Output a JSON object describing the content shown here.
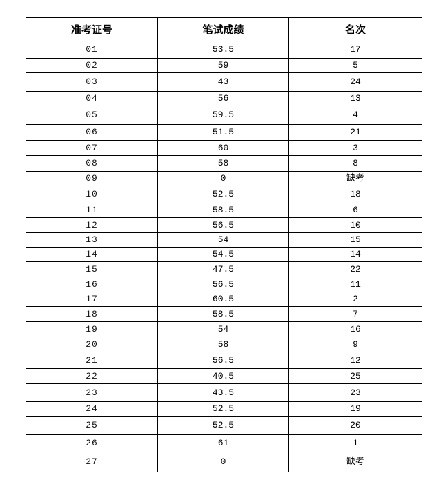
{
  "table": {
    "headers": [
      "准考证号",
      "笔试成绩",
      "名次"
    ],
    "rows": [
      [
        "01",
        "53.5",
        "17"
      ],
      [
        "02",
        "59",
        "5"
      ],
      [
        "03",
        "43",
        "24"
      ],
      [
        "04",
        "56",
        "13"
      ],
      [
        "05",
        "59.5",
        "4"
      ],
      [
        "06",
        "51.5",
        "21"
      ],
      [
        "07",
        "60",
        "3"
      ],
      [
        "08",
        "58",
        "8"
      ],
      [
        "09",
        "0",
        "缺考"
      ],
      [
        "10",
        "52.5",
        "18"
      ],
      [
        "11",
        "58.5",
        "6"
      ],
      [
        "12",
        "56.5",
        "10"
      ],
      [
        "13",
        "54",
        "15"
      ],
      [
        "14",
        "54.5",
        "14"
      ],
      [
        "15",
        "47.5",
        "22"
      ],
      [
        "16",
        "56.5",
        "11"
      ],
      [
        "17",
        "60.5",
        "2"
      ],
      [
        "18",
        "58.5",
        "7"
      ],
      [
        "19",
        "54",
        "16"
      ],
      [
        "20",
        "58",
        "9"
      ],
      [
        "21",
        "56.5",
        "12"
      ],
      [
        "22",
        "40.5",
        "25"
      ],
      [
        "23",
        "43.5",
        "23"
      ],
      [
        "24",
        "52.5",
        "19"
      ],
      [
        "25",
        "52.5",
        "20"
      ],
      [
        "26",
        "61",
        "1"
      ],
      [
        "27",
        "0",
        "缺考"
      ]
    ]
  }
}
